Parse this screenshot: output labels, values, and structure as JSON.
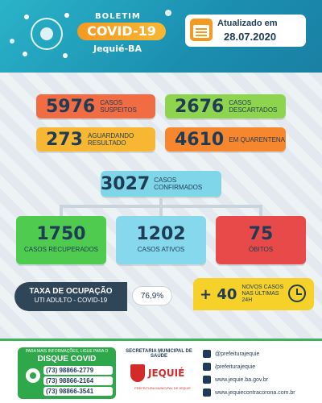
{
  "header": {
    "boletim": "BOLETIM",
    "title": "COVID-19",
    "city": "Jequié-BA",
    "update_label": "Atualizado em",
    "update_date": "28.07.2020"
  },
  "stats": {
    "suspeitos": {
      "value": "5976",
      "label": "CASOS SUSPEITOS"
    },
    "descartados": {
      "value": "2676",
      "label": "CASOS DESCARTADOS"
    },
    "aguardando": {
      "value": "273",
      "label": "AGUARDANDO RESULTADO"
    },
    "quarentena": {
      "value": "4610",
      "label": "EM QUARENTENA"
    },
    "confirmados": {
      "value": "3027",
      "label": "CASOS CONFIRMADOS"
    },
    "recuperados": {
      "value": "1750",
      "label": "CASOS RECUPERADOS"
    },
    "ativos": {
      "value": "1202",
      "label": "CASOS ATIVOS"
    },
    "obitos": {
      "value": "75",
      "label": "ÓBITOS"
    }
  },
  "occupancy": {
    "title": "TAXA DE OCUPAÇÃO",
    "subtitle": "UTI ADULTO - COVID-19",
    "value": "76,9%"
  },
  "new_cases": {
    "value": "+ 40",
    "label": "NOVOS CASOS NAS ÚLTIMAS 24H"
  },
  "footer": {
    "info": "PARA MAIS INFORMAÇÕES, LIGUE PARA O",
    "disque": "DISQUE COVID",
    "phones": [
      "(73) 98866-2779",
      "(73) 98866-2164",
      "(73) 98866-3541"
    ],
    "secretaria": "SECRETARIA MUNICIPAL DE SAÚDE",
    "logo": "JEQUIÉ",
    "logo_sub": "PREFEITURA MUNICIPAL DE JEQUIÉ",
    "social": [
      "@prefeiturajequie",
      "/prefeiturajequie",
      "www.jequie.ba.gov.br",
      "www.jequiecontracorona.com.br"
    ]
  },
  "colors": {
    "header": "#1b8fb0",
    "red": "#f16c43",
    "green": "#8fd44f",
    "yellow": "#f7b733",
    "orange": "#f7872e",
    "blue": "#7fd6e8",
    "dark": "#2f4659"
  }
}
